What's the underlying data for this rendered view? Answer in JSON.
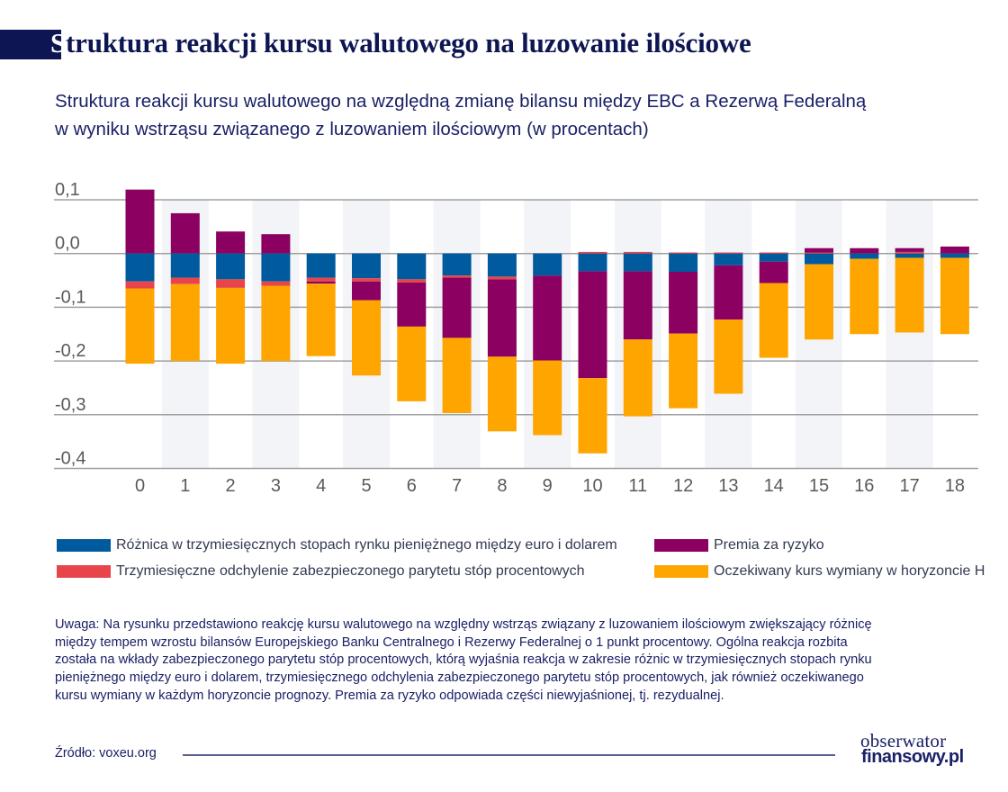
{
  "header": {
    "title_first_letter": "S",
    "title_rest": "truktura reakcji kursu walutowego na luzowanie ilościowe",
    "subtitle_lines": [
      "Struktura reakcji kursu walutowego na względną zmianę bilansu między EBC a Rezerwą Federalną",
      "w wyniku wstrząsu związanego z luzowaniem ilościowym (w procentach)"
    ]
  },
  "colors": {
    "title": "#0d1652",
    "text": "#1a2066",
    "blue": "#005a9e",
    "red": "#e8454b",
    "purple": "#8b0060",
    "orange": "#ffa500",
    "band": "#f3f4f8",
    "grid": "#a0a0a0"
  },
  "chart_data": {
    "type": "bar",
    "stacked": true,
    "title": "Struktura reakcji kursu walutowego na luzowanie ilościowe",
    "xlabel": "",
    "ylabel": "",
    "ylim": [
      -0.4,
      0.1
    ],
    "yticks": [
      0.1,
      0.0,
      -0.1,
      -0.2,
      -0.3,
      -0.4
    ],
    "ytick_labels": [
      "0,1",
      "0,0",
      "-0,1",
      "-0,2",
      "-0,3",
      "-0,4"
    ],
    "grid": "horizontal",
    "alternate_bands": true,
    "legend_position": "bottom",
    "categories": [
      "0",
      "1",
      "2",
      "3",
      "4",
      "5",
      "6",
      "7",
      "8",
      "9",
      "10",
      "11",
      "12",
      "13",
      "14",
      "15",
      "16",
      "17",
      "18"
    ],
    "series": [
      {
        "key": "blue",
        "name": "Różnica w trzymiesięcznych stopach rynku pieniężnego między euro i dolarem",
        "values": [
          -0.052,
          -0.045,
          -0.048,
          -0.052,
          -0.045,
          -0.046,
          -0.048,
          -0.041,
          -0.043,
          -0.041,
          -0.033,
          -0.033,
          -0.034,
          -0.022,
          -0.015,
          -0.02,
          -0.01,
          -0.008,
          -0.008
        ]
      },
      {
        "key": "red",
        "name": "Trzymiesięczne odchylenie zabezpieczonego parytetu stóp procentowych",
        "values": [
          -0.013,
          -0.012,
          -0.016,
          -0.008,
          -0.007,
          -0.006,
          -0.006,
          -0.004,
          -0.005,
          0.0,
          0.003,
          0.003,
          0.002,
          0.002,
          0.002,
          0.002,
          0.0,
          0.003,
          0.0
        ]
      },
      {
        "key": "purple",
        "name": "Premia za ryzyko",
        "values": [
          0.119,
          0.075,
          0.041,
          0.036,
          -0.004,
          -0.035,
          -0.082,
          -0.112,
          -0.144,
          -0.158,
          -0.199,
          -0.127,
          -0.115,
          -0.101,
          -0.04,
          0.008,
          0.01,
          0.007,
          0.013
        ]
      },
      {
        "key": "orange",
        "name": "Oczekiwany kurs wymiany w horyzoncie H",
        "values": [
          -0.14,
          -0.143,
          -0.141,
          -0.14,
          -0.135,
          -0.14,
          -0.139,
          -0.14,
          -0.139,
          -0.139,
          -0.14,
          -0.143,
          -0.139,
          -0.138,
          -0.139,
          -0.14,
          -0.14,
          -0.139,
          -0.142
        ]
      }
    ]
  },
  "legend": [
    {
      "key": "blue",
      "label": "Różnica w trzymiesięcznych stopach rynku pieniężnego między euro i dolarem"
    },
    {
      "key": "red",
      "label": "Trzymiesięczne odchylenie zabezpieczonego parytetu stóp procentowych"
    },
    {
      "key": "purple",
      "label": "Premia za ryzyko"
    },
    {
      "key": "orange",
      "label": "Oczekiwany kurs wymiany w horyzoncie H"
    }
  ],
  "note_lines": [
    "Uwaga: Na rysunku przedstawiono reakcję kursu walutowego na względny wstrząs związany z luzowaniem ilościowym zwiększający różnicę",
    "między tempem wzrostu bilansów Europejskiego Banku Centralnego i Rezerwy Federalnej o 1 punkt procentowy. Ogólna reakcja rozbita",
    "została na wkłady zabezpieczonego parytetu stóp procentowych, którą wyjaśnia reakcja w zakresie różnic w trzymiesięcznych stopach rynku",
    "pieniężnego między euro i dolarem, trzymiesięcznego odchylenia zabezpieczonego parytetu stóp procentowych, jak również oczekiwanego",
    "kursu wymiany w każdym horyzoncie prognozy. Premia za ryzyko odpowiada części niewyjaśnionej, tj. rezydualnej."
  ],
  "footer": {
    "source": "Źródło: voxeu.org",
    "logo_line1": "obserwator",
    "logo_line2": "finansowy.pl"
  }
}
